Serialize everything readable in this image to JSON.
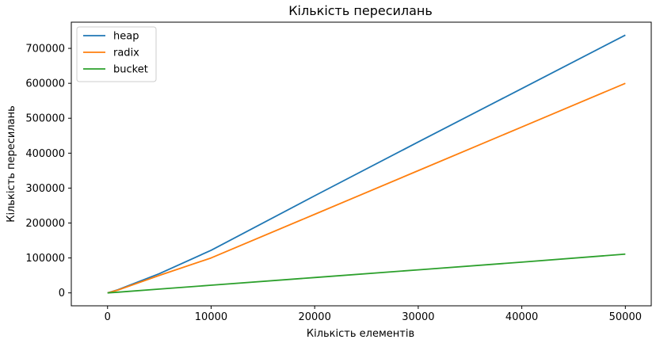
{
  "chart_data": {
    "type": "line",
    "title": "Кількість пересилань",
    "xlabel": "Кількість елементів",
    "ylabel": "Кількість пересилань",
    "xlim": [
      -3500,
      52500
    ],
    "ylim": [
      -37000,
      775000
    ],
    "xticks": [
      0,
      10000,
      20000,
      30000,
      40000,
      50000
    ],
    "yticks": [
      0,
      100000,
      200000,
      300000,
      400000,
      500000,
      600000,
      700000
    ],
    "grid": false,
    "legend_position": "top-left",
    "series": [
      {
        "name": "heap",
        "color": "#1f77b4",
        "x": [
          0,
          1000,
          5000,
          10000,
          20000,
          30000,
          40000,
          50000
        ],
        "y": [
          0,
          9000,
          55000,
          122000,
          278000,
          432000,
          585000,
          738000
        ]
      },
      {
        "name": "radix",
        "color": "#ff7f0e",
        "x": [
          0,
          1000,
          5000,
          10000,
          20000,
          30000,
          40000,
          50000
        ],
        "y": [
          0,
          8000,
          50000,
          100000,
          225000,
          350000,
          475000,
          600000
        ]
      },
      {
        "name": "bucket",
        "color": "#2ca02c",
        "x": [
          0,
          1000,
          5000,
          10000,
          20000,
          30000,
          40000,
          50000
        ],
        "y": [
          0,
          2000,
          11000,
          22000,
          44000,
          66000,
          88000,
          111000
        ]
      }
    ]
  }
}
